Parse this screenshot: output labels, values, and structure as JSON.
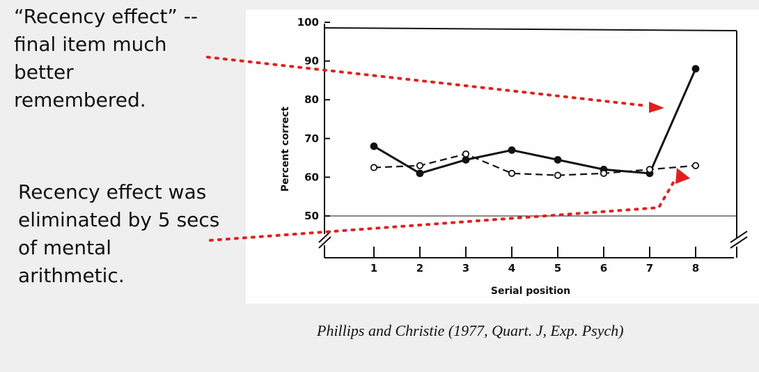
{
  "annotations": {
    "top": [
      "“Recency effect” --",
      "final item much",
      "better",
      "remembered."
    ],
    "bottom": [
      "Recency effect was",
      "eliminated by 5 secs",
      "of mental",
      "arithmetic."
    ]
  },
  "citation": "Phillips and Christie (1977, Quart. J, Exp. Psych)",
  "colors": {
    "arrow": "#e02020",
    "ink": "#111111",
    "background": "#efefef"
  },
  "chart_data": {
    "type": "line",
    "xlabel": "Serial position",
    "ylabel": "Percent correct",
    "x": [
      1,
      2,
      3,
      4,
      5,
      6,
      7,
      8
    ],
    "yticks": [
      50,
      60,
      70,
      80,
      90,
      100
    ],
    "ylim": [
      50,
      100
    ],
    "grid": false,
    "series": [
      {
        "style": "solid line, filled circles",
        "values": [
          68,
          61,
          64.5,
          67,
          64.5,
          62,
          61,
          88
        ]
      },
      {
        "style": "dashed line, open circles",
        "values": [
          62.5,
          63,
          66,
          61,
          60.5,
          61,
          62,
          63
        ]
      }
    ]
  }
}
